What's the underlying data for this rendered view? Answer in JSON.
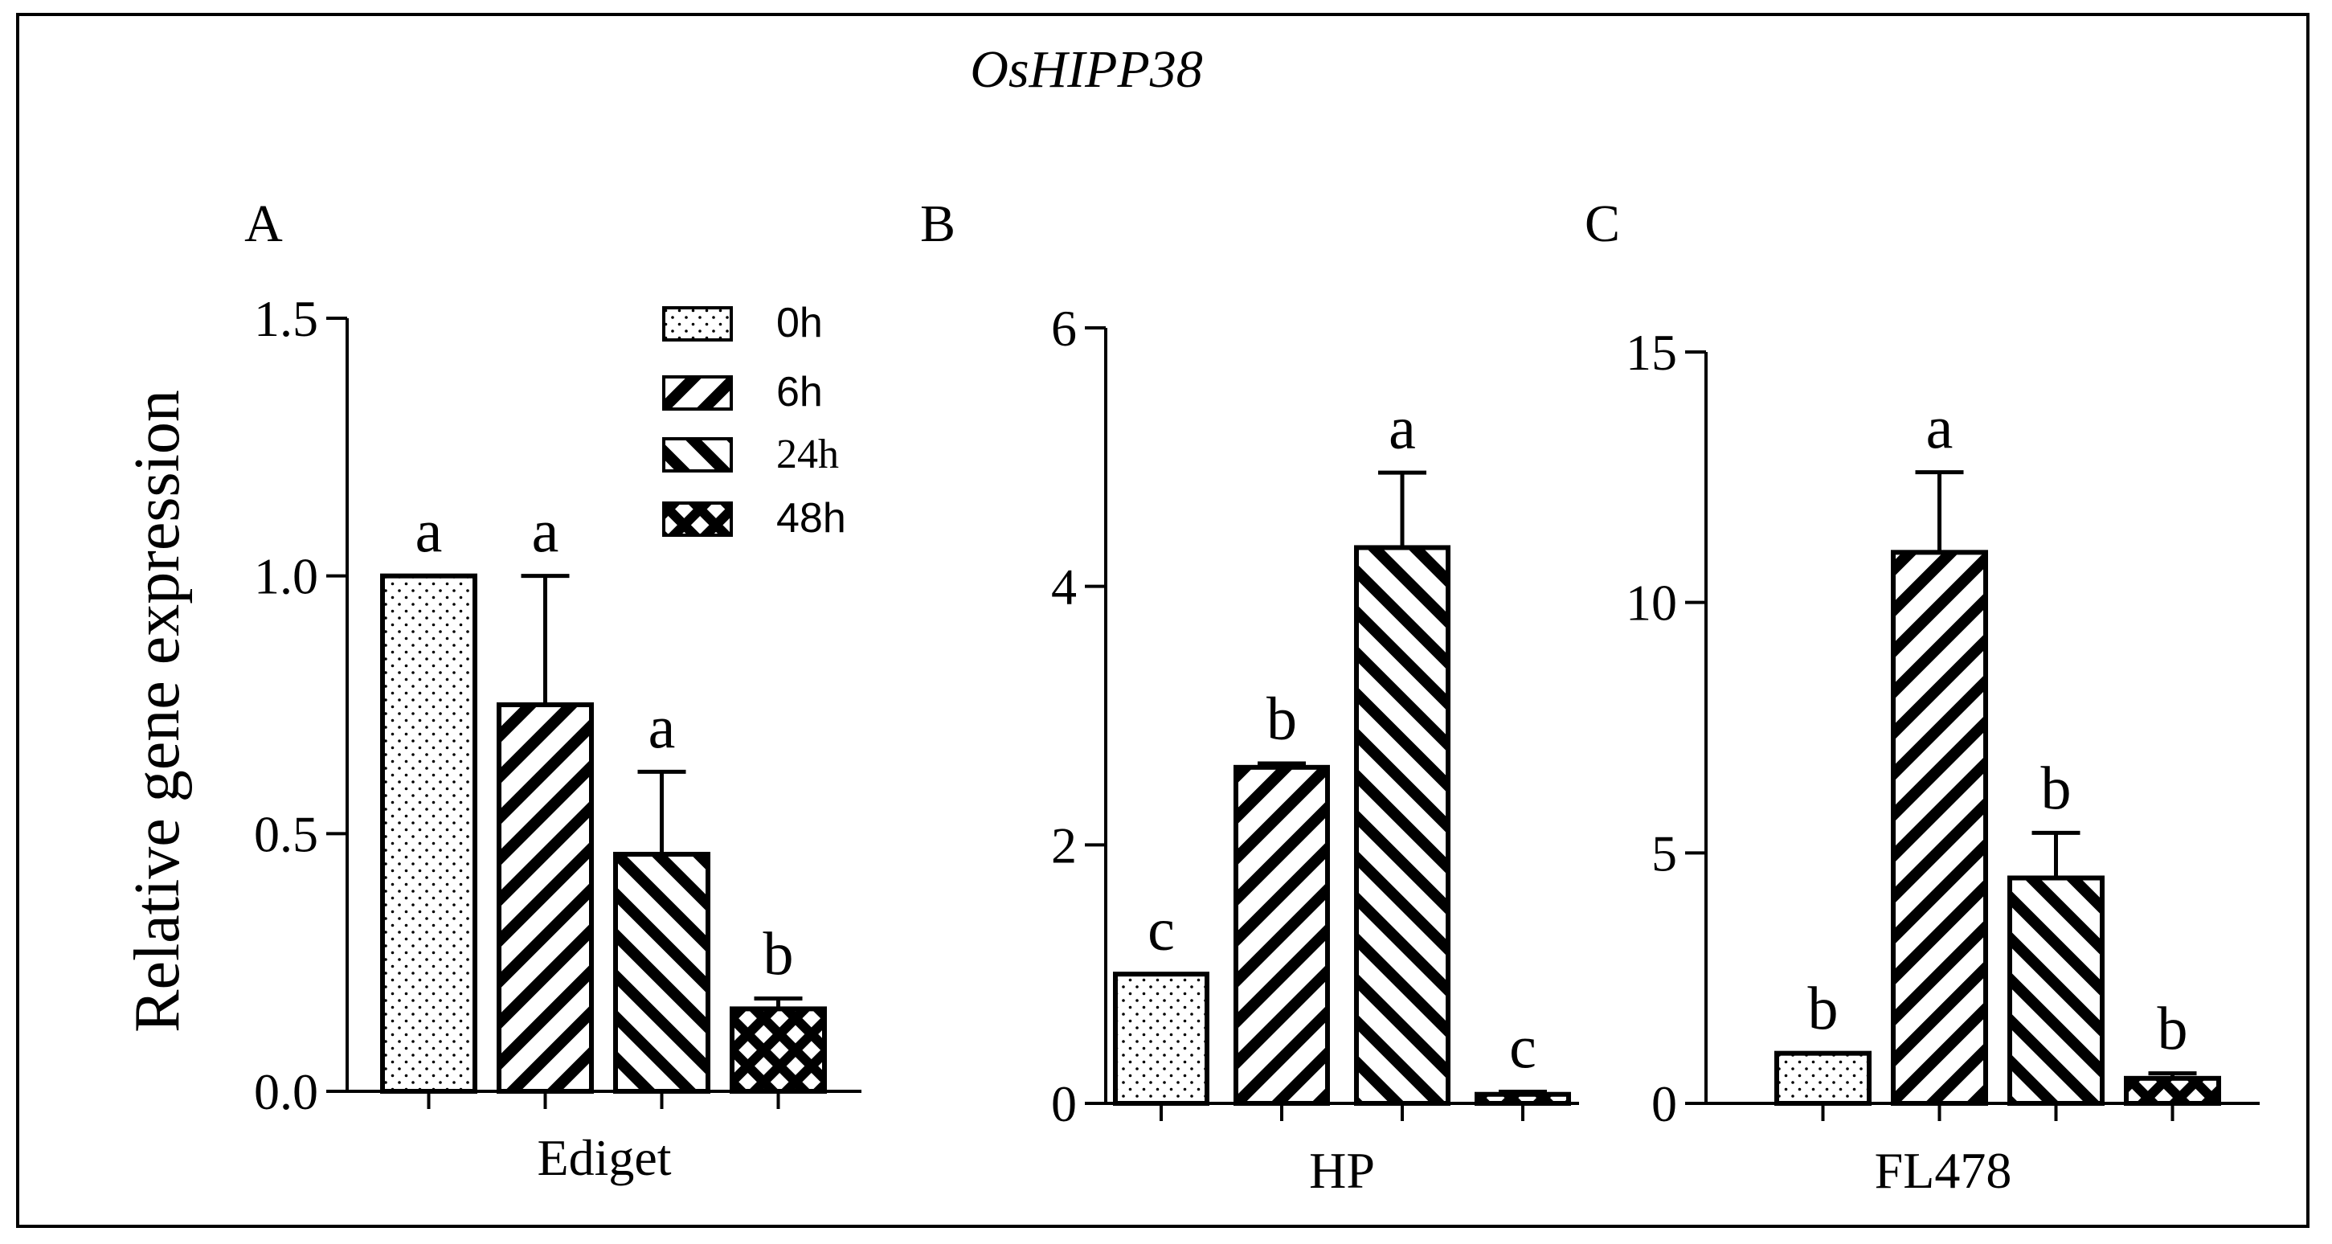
{
  "title": "OsHIPP38",
  "y_axis_label": "Relative gene expression",
  "legend": {
    "entries": [
      {
        "label": "0h",
        "pattern": "dots"
      },
      {
        "label": "6h",
        "pattern": "diag-down"
      },
      {
        "label": "24h",
        "pattern": "diag-up"
      },
      {
        "label": "48h",
        "pattern": "cross"
      }
    ]
  },
  "chart_data": [
    {
      "type": "bar",
      "panel_label": "A",
      "xlabel": "Ediget",
      "categories": [
        "0h",
        "6h",
        "24h",
        "48h"
      ],
      "values": [
        1.0,
        0.75,
        0.46,
        0.16
      ],
      "errors": [
        0.0,
        0.25,
        0.16,
        0.02
      ],
      "letters": [
        "a",
        "a",
        "a",
        "b"
      ],
      "ylim": [
        0,
        1.5
      ],
      "yticks": [
        0.0,
        0.5,
        1.0,
        1.5
      ],
      "ytick_labels": [
        "0.0",
        "0.5",
        "1.0",
        "1.5"
      ],
      "ylabel": "Relative gene expression"
    },
    {
      "type": "bar",
      "panel_label": "B",
      "xlabel": "HP",
      "categories": [
        "0h",
        "6h",
        "24h",
        "48h"
      ],
      "values": [
        1.0,
        2.6,
        4.3,
        0.07
      ],
      "errors": [
        0.0,
        0.03,
        0.58,
        0.02
      ],
      "letters": [
        "c",
        "b",
        "a",
        "c"
      ],
      "ylim": [
        0,
        6
      ],
      "yticks": [
        0,
        2,
        4,
        6
      ],
      "ytick_labels": [
        "0",
        "2",
        "4",
        "6"
      ],
      "ylabel": ""
    },
    {
      "type": "bar",
      "panel_label": "C",
      "xlabel": "FL478",
      "categories": [
        "0h",
        "6h",
        "24h",
        "48h"
      ],
      "values": [
        1.0,
        11.0,
        4.5,
        0.5
      ],
      "errors": [
        0.0,
        1.6,
        0.9,
        0.1
      ],
      "letters": [
        "b",
        "a",
        "b",
        "b"
      ],
      "ylim": [
        0,
        15
      ],
      "yticks": [
        0,
        5,
        10,
        15
      ],
      "ytick_labels": [
        "0",
        "5",
        "10",
        "15"
      ],
      "ylabel": ""
    }
  ]
}
